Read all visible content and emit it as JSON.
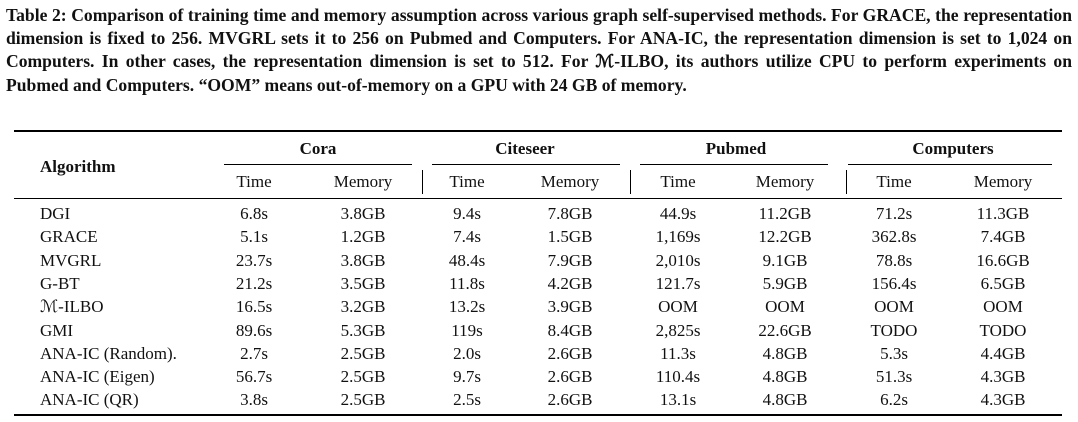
{
  "caption": {
    "label": "Table 2:",
    "text": "Comparison of training time and memory assumption across various graph self-supervised methods. For GRACE, the representation dimension is fixed to 256. MVGRL sets it to 256 on Pubmed and Computers. For ANA-IC, the representation dimension is set to 1,024 on Computers. In other cases, the representation dimension is set to 512. For ℳ-ILBO, its authors utilize CPU to perform experiments on Pubmed and Computers. “OOM” means out-of-memory on a GPU with 24 GB of memory."
  },
  "table": {
    "row_header_label": "Algorithm",
    "groups": [
      "Cora",
      "Citeseer",
      "Pubmed",
      "Computers"
    ],
    "subheaders": [
      "Time",
      "Memory",
      "Time",
      "Memory",
      "Time",
      "Memory",
      "Time",
      "Memory"
    ],
    "rows": [
      {
        "name": "DGI",
        "cells": [
          "6.8s",
          "3.8GB",
          "9.4s",
          "7.8GB",
          "44.9s",
          "11.2GB",
          "71.2s",
          "11.3GB"
        ]
      },
      {
        "name": "GRACE",
        "cells": [
          "5.1s",
          "1.2GB",
          "7.4s",
          "1.5GB",
          "1,169s",
          "12.2GB",
          "362.8s",
          "7.4GB"
        ]
      },
      {
        "name": "MVGRL",
        "cells": [
          "23.7s",
          "3.8GB",
          "48.4s",
          "7.9GB",
          "2,010s",
          "9.1GB",
          "78.8s",
          "16.6GB"
        ]
      },
      {
        "name": "G-BT",
        "cells": [
          "21.2s",
          "3.5GB",
          "11.8s",
          "4.2GB",
          "121.7s",
          "5.9GB",
          "156.4s",
          "6.5GB"
        ]
      },
      {
        "name": "ℳ-ILBO",
        "cells": [
          "16.5s",
          "3.2GB",
          "13.2s",
          "3.9GB",
          "OOM",
          "OOM",
          "OOM",
          "OOM"
        ]
      },
      {
        "name": "GMI",
        "cells": [
          "89.6s",
          "5.3GB",
          "119s",
          "8.4GB",
          "2,825s",
          "22.6GB",
          "TODO",
          "TODO"
        ]
      },
      {
        "name": "ANA-IC (Random).",
        "cells": [
          "2.7s",
          "2.5GB",
          "2.0s",
          "2.6GB",
          "11.3s",
          "4.8GB",
          "5.3s",
          "4.4GB"
        ]
      },
      {
        "name": "ANA-IC (Eigen)",
        "cells": [
          "56.7s",
          "2.5GB",
          "9.7s",
          "2.6GB",
          "110.4s",
          "4.8GB",
          "51.3s",
          "4.3GB"
        ]
      },
      {
        "name": "ANA-IC (QR)",
        "cells": [
          "3.8s",
          "2.5GB",
          "2.5s",
          "2.6GB",
          "13.1s",
          "4.8GB",
          "6.2s",
          "4.3GB"
        ]
      }
    ]
  }
}
